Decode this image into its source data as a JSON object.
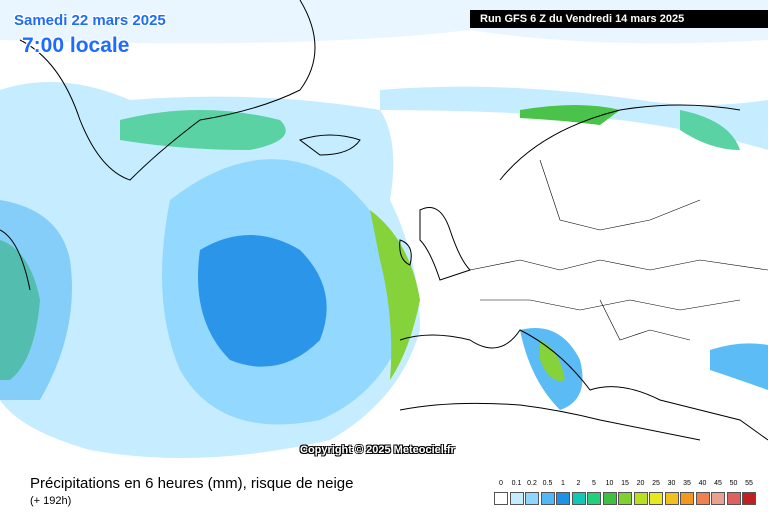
{
  "header": {
    "date": "Samedi 22 mars 2025",
    "time": "7:00 locale",
    "run": "Run GFS 6 Z du Vendredi 14 mars 2025"
  },
  "copyright": "Copyright © 2025 Meteociel.fr",
  "legend": {
    "title": "Précipitations en 6 heures (mm), risque de neige",
    "subtitle": "(+ 192h)",
    "items": [
      {
        "label": "0",
        "color": "#ffffff"
      },
      {
        "label": "0.1",
        "color": "#c4ecff"
      },
      {
        "label": "0.2",
        "color": "#8ed6ff"
      },
      {
        "label": "0.5",
        "color": "#52b8f5"
      },
      {
        "label": "1",
        "color": "#2090e8"
      },
      {
        "label": "2",
        "color": "#10c8b4"
      },
      {
        "label": "5",
        "color": "#20d07a"
      },
      {
        "label": "10",
        "color": "#40c040"
      },
      {
        "label": "15",
        "color": "#80d030"
      },
      {
        "label": "20",
        "color": "#b8e020"
      },
      {
        "label": "25",
        "color": "#e8e820"
      },
      {
        "label": "30",
        "color": "#f0c020"
      },
      {
        "label": "35",
        "color": "#f09820"
      },
      {
        "label": "40",
        "color": "#f08050"
      },
      {
        "label": "45",
        "color": "#e8a090"
      },
      {
        "label": "50",
        "color": "#e06060"
      },
      {
        "label": "55",
        "color": "#c02020"
      }
    ]
  }
}
